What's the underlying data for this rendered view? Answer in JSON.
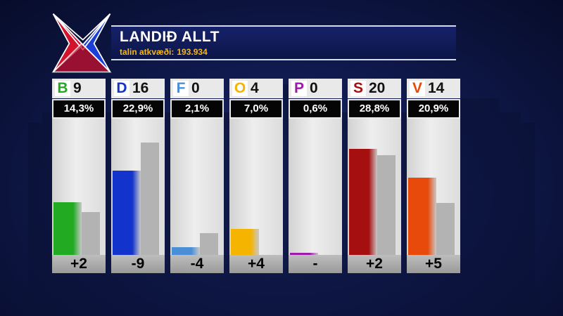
{
  "header": {
    "title": "LANDIÐ ALLT",
    "subtitle_label": "talin atkvæði:",
    "subtitle_value": "193.934"
  },
  "colors": {
    "title_bar": "#16226a",
    "subtitle": "#f3b81c",
    "previous_bar": "#b3b3b3",
    "logo_red": "#d3122b",
    "logo_blue": "#1b3fd4"
  },
  "chart_data": {
    "type": "bar",
    "title": "LANDIÐ ALLT",
    "subtitle": "talin atkvæði: 193.934",
    "categories": [
      "B",
      "D",
      "F",
      "O",
      "P",
      "S",
      "V"
    ],
    "ylim": [
      0,
      37
    ],
    "grid": false,
    "parties": [
      {
        "letter": "B",
        "seats": "9",
        "pct_label": "14,3%",
        "pct": 14.3,
        "prev_pct": 11.7,
        "change": "+2",
        "color": "#22aa22"
      },
      {
        "letter": "D",
        "seats": "16",
        "pct_label": "22,9%",
        "pct": 22.9,
        "prev_pct": 30.5,
        "change": "-9",
        "color": "#1233cc"
      },
      {
        "letter": "F",
        "seats": "0",
        "pct_label": "2,1%",
        "pct": 2.1,
        "prev_pct": 6.0,
        "change": "-4",
        "color": "#4a8fd6"
      },
      {
        "letter": "O",
        "seats": "4",
        "pct_label": "7,0%",
        "pct": 7.0,
        "prev_pct": 0.0,
        "change": "+4",
        "color": "#f5b400"
      },
      {
        "letter": "P",
        "seats": "0",
        "pct_label": "0,6%",
        "pct": 0.6,
        "prev_pct": 0.0,
        "change": "-",
        "color": "#9c1aa8"
      },
      {
        "letter": "S",
        "seats": "20",
        "pct_label": "28,8%",
        "pct": 28.8,
        "prev_pct": 27.0,
        "change": "+2",
        "color": "#a60f0f"
      },
      {
        "letter": "V",
        "seats": "14",
        "pct_label": "20,9%",
        "pct": 20.9,
        "prev_pct": 14.2,
        "change": "+5",
        "color": "#e84a0c"
      }
    ],
    "series": [
      {
        "values": [
          14.3,
          22.9,
          2.1,
          7.0,
          0.6,
          28.8,
          20.9
        ]
      },
      {
        "values": [
          11.7,
          30.5,
          6.0,
          0.0,
          0.0,
          27.0,
          14.2
        ]
      }
    ]
  }
}
